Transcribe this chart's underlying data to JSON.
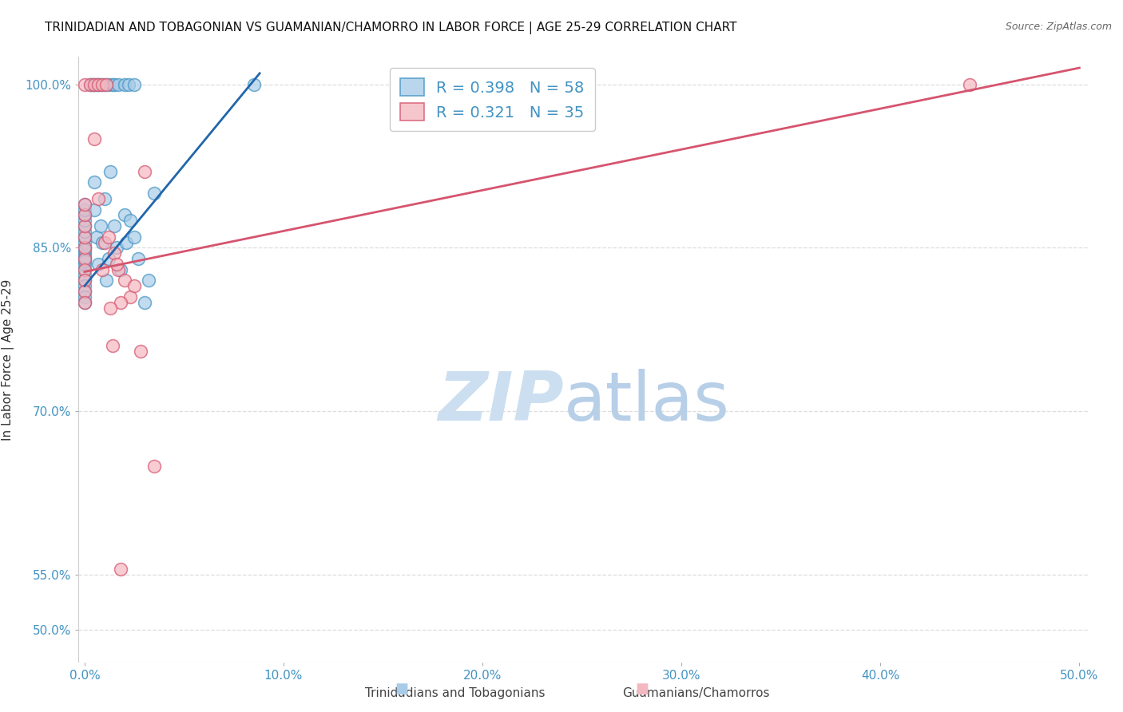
{
  "title": "TRINIDADIAN AND TOBAGONIAN VS GUAMANIAN/CHAMORRO IN LABOR FORCE | AGE 25-29 CORRELATION CHART",
  "source": "Source: ZipAtlas.com",
  "ylabel": "In Labor Force | Age 25-29",
  "legend_blue_R": "0.398",
  "legend_blue_N": "58",
  "legend_pink_R": "0.321",
  "legend_pink_N": "35",
  "legend_blue_label": "Trinidadians and Tobagonians",
  "legend_pink_label": "Guamanians/Chamorros",
  "blue_color": "#a8cce8",
  "blue_edge_color": "#4393c3",
  "pink_color": "#f4b8c1",
  "pink_edge_color": "#d6546e",
  "blue_line_color": "#2166ac",
  "pink_line_color": "#d6546e",
  "blue_points_x": [
    0.0,
    0.0,
    0.0,
    0.0,
    0.0,
    0.0,
    0.0,
    0.0,
    0.0,
    0.0,
    0.0,
    0.0,
    0.0,
    0.0,
    0.0,
    0.0,
    0.0,
    0.0,
    0.0,
    0.0,
    0.0,
    0.0,
    0.5,
    0.5,
    0.6,
    0.7,
    0.8,
    0.9,
    1.0,
    1.1,
    1.2,
    1.3,
    1.5,
    1.6,
    1.8,
    2.0,
    2.1,
    2.3,
    2.5,
    2.7,
    3.0,
    3.2,
    3.5,
    0.3,
    0.4,
    0.5,
    0.6,
    0.7,
    0.8,
    1.0,
    1.2,
    1.4,
    1.5,
    1.7,
    2.0,
    2.2,
    2.5,
    8.5
  ],
  "blue_points_y": [
    84.0,
    84.5,
    85.0,
    85.5,
    86.0,
    86.5,
    87.0,
    87.5,
    88.0,
    88.5,
    89.0,
    83.0,
    83.5,
    82.5,
    82.0,
    81.5,
    81.0,
    80.5,
    80.0,
    84.2,
    84.8,
    83.8,
    91.0,
    88.5,
    86.0,
    83.5,
    87.0,
    85.5,
    89.5,
    82.0,
    84.0,
    92.0,
    87.0,
    85.0,
    83.0,
    88.0,
    85.5,
    87.5,
    86.0,
    84.0,
    80.0,
    82.0,
    90.0,
    100.0,
    100.0,
    100.0,
    100.0,
    100.0,
    100.0,
    100.0,
    100.0,
    100.0,
    100.0,
    100.0,
    100.0,
    100.0,
    100.0,
    100.0
  ],
  "pink_points_x": [
    0.0,
    0.0,
    0.0,
    0.0,
    0.0,
    0.0,
    0.0,
    0.0,
    0.0,
    0.0,
    0.0,
    0.5,
    0.7,
    0.9,
    1.0,
    1.2,
    1.5,
    1.7,
    2.0,
    2.3,
    2.5,
    2.8,
    3.0,
    1.8,
    3.5,
    1.3,
    1.6,
    0.3,
    0.5,
    0.7,
    0.9,
    1.1,
    1.4,
    1.8,
    44.5
  ],
  "pink_points_y": [
    84.0,
    85.0,
    86.0,
    87.0,
    88.0,
    89.0,
    83.0,
    82.0,
    81.0,
    80.0,
    100.0,
    95.0,
    89.5,
    83.0,
    85.5,
    86.0,
    84.5,
    83.0,
    82.0,
    80.5,
    81.5,
    75.5,
    92.0,
    80.0,
    65.0,
    79.5,
    83.5,
    100.0,
    100.0,
    100.0,
    100.0,
    100.0,
    76.0,
    55.5,
    100.0
  ],
  "blue_line_x": [
    0.0,
    8.8
  ],
  "blue_line_y": [
    81.5,
    101.0
  ],
  "pink_line_x": [
    0.0,
    50.0
  ],
  "pink_line_y": [
    82.8,
    101.5
  ],
  "xmin": -0.3,
  "xmax": 50.5,
  "ymin": 47.0,
  "ymax": 102.5,
  "x_ticks": [
    0,
    10,
    20,
    30,
    40,
    50
  ],
  "y_ticks": [
    50,
    55,
    70,
    85,
    100
  ],
  "tick_color": "#4393c3",
  "grid_color": "#dddddd",
  "watermark_zip_color": "#ccdff0",
  "watermark_atlas_color": "#b8cfe8"
}
